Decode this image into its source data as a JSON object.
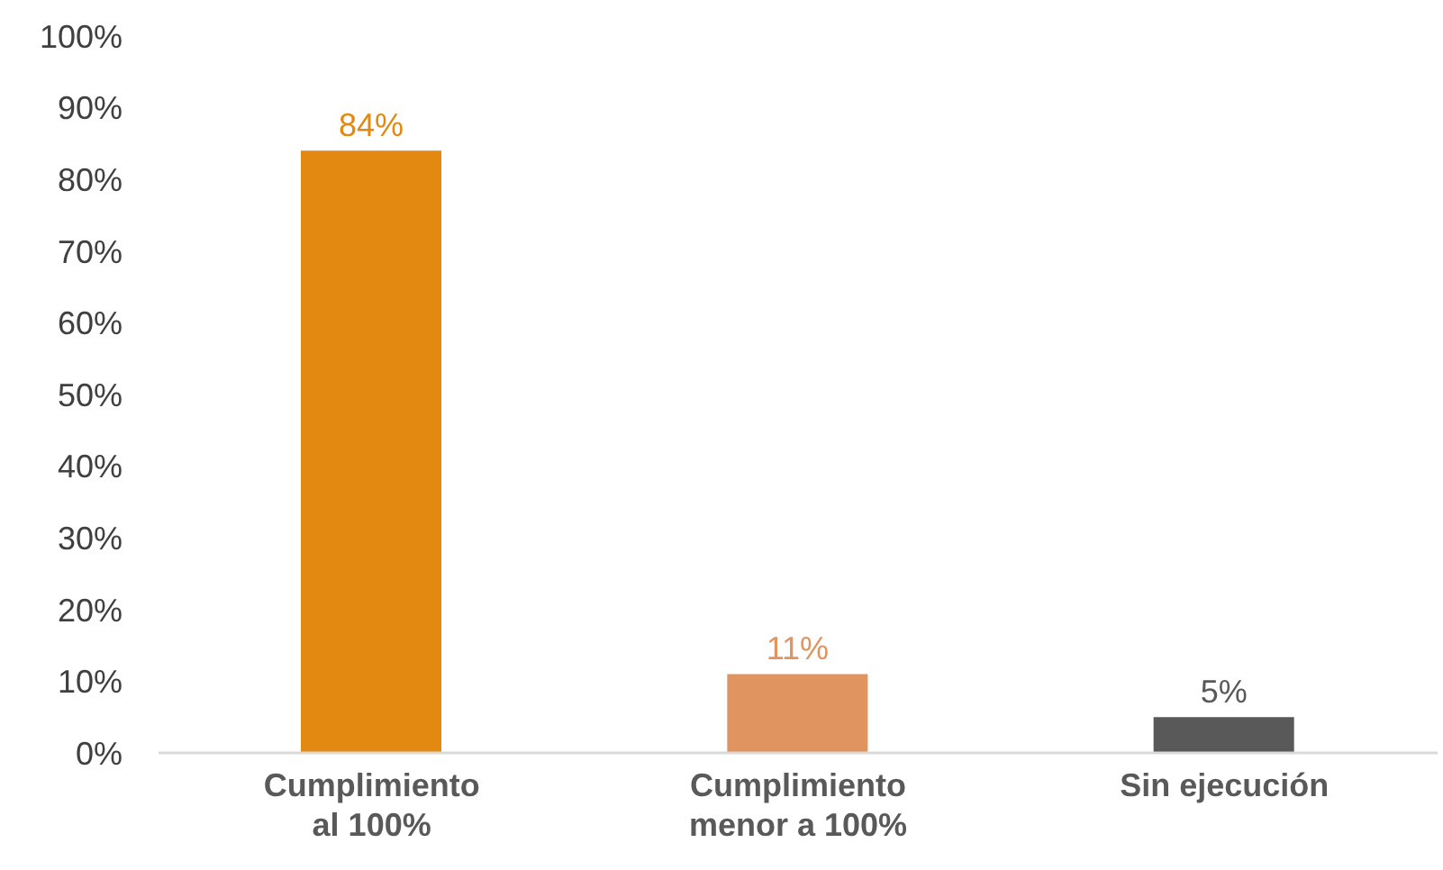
{
  "chart_data": {
    "type": "bar",
    "categories": [
      "Cumplimiento al 100%",
      "Cumplimiento menor a 100%",
      "Sin ejecución"
    ],
    "values": [
      84,
      11,
      5
    ],
    "colors": [
      "#e38911",
      "#e09460",
      "#595959"
    ],
    "value_labels": [
      "84%",
      "11%",
      "5%"
    ],
    "ylim": [
      0,
      100
    ],
    "yticks": [
      {
        "value": 0,
        "label": "0%"
      },
      {
        "value": 10,
        "label": "10%"
      },
      {
        "value": 20,
        "label": "20%"
      },
      {
        "value": 30,
        "label": "30%"
      },
      {
        "value": 40,
        "label": "40%"
      },
      {
        "value": 50,
        "label": "50%"
      },
      {
        "value": 60,
        "label": "60%"
      },
      {
        "value": 70,
        "label": "70%"
      },
      {
        "value": 80,
        "label": "80%"
      },
      {
        "value": 90,
        "label": "90%"
      },
      {
        "value": 100,
        "label": "100%"
      }
    ],
    "grid": false,
    "legend": false
  }
}
